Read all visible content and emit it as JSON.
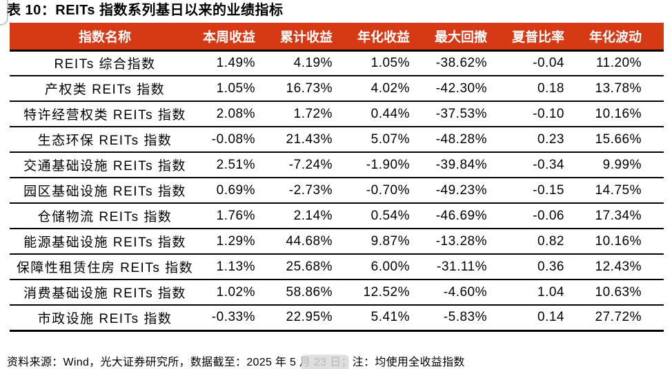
{
  "page": {
    "title": "表 10：REITs 指数系列基日以来的业绩指标"
  },
  "table": {
    "columns": [
      "指数名称",
      "本周收益",
      "累计收益",
      "年化收益",
      "最大回撤",
      "夏普比率",
      "年化波动"
    ],
    "rows": [
      {
        "name": "REITs 综合指数",
        "values": [
          "1.49%",
          "4.19%",
          "1.05%",
          "-38.62%",
          "-0.04",
          "11.20%"
        ]
      },
      {
        "name": "产权类 REITs 指数",
        "values": [
          "1.05%",
          "16.73%",
          "4.02%",
          "-42.30%",
          "0.18",
          "13.78%"
        ]
      },
      {
        "name": "特许经营权类 REITs 指数",
        "values": [
          "2.08%",
          "1.72%",
          "0.44%",
          "-37.53%",
          "-0.10",
          "10.16%"
        ]
      },
      {
        "name": "生态环保 REITs 指数",
        "values": [
          "-0.08%",
          "21.43%",
          "5.07%",
          "-48.28%",
          "0.23",
          "15.66%"
        ]
      },
      {
        "name": "交通基础设施 REITs 指数",
        "values": [
          "2.51%",
          "-7.24%",
          "-1.90%",
          "-39.84%",
          "-0.34",
          "9.99%"
        ]
      },
      {
        "name": "园区基础设施 REITs 指数",
        "values": [
          "0.69%",
          "-2.73%",
          "-0.70%",
          "-49.23%",
          "-0.15",
          "14.75%"
        ]
      },
      {
        "name": "仓储物流 REITs 指数",
        "values": [
          "1.76%",
          "2.14%",
          "0.54%",
          "-46.69%",
          "-0.06",
          "17.34%"
        ]
      },
      {
        "name": "能源基础设施 REITs 指数",
        "values": [
          "1.29%",
          "44.68%",
          "9.87%",
          "-13.28%",
          "0.82",
          "10.16%"
        ]
      },
      {
        "name": "保障性租赁住房 REITs 指数",
        "values": [
          "1.13%",
          "25.68%",
          "6.00%",
          "-31.11%",
          "0.36",
          "12.43%"
        ]
      },
      {
        "name": "消费基础设施 REITs 指数",
        "values": [
          "1.02%",
          "58.86%",
          "12.52%",
          "-4.60%",
          "1.04",
          "10.63%"
        ]
      },
      {
        "name": "市政设施 REITs 指数",
        "values": [
          "-0.33%",
          "22.95%",
          "5.41%",
          "-5.83%",
          "0.14",
          "27.72%"
        ]
      }
    ]
  },
  "footer": {
    "source": "资料来源：Wind，光大证券研究所，数据截至：2025 年 5 月 23 日；注：均使用全收益指数"
  },
  "colors": {
    "header_bg": "#d53a14",
    "header_text": "#ffffff",
    "body_text": "#000000",
    "border": "#000000"
  }
}
